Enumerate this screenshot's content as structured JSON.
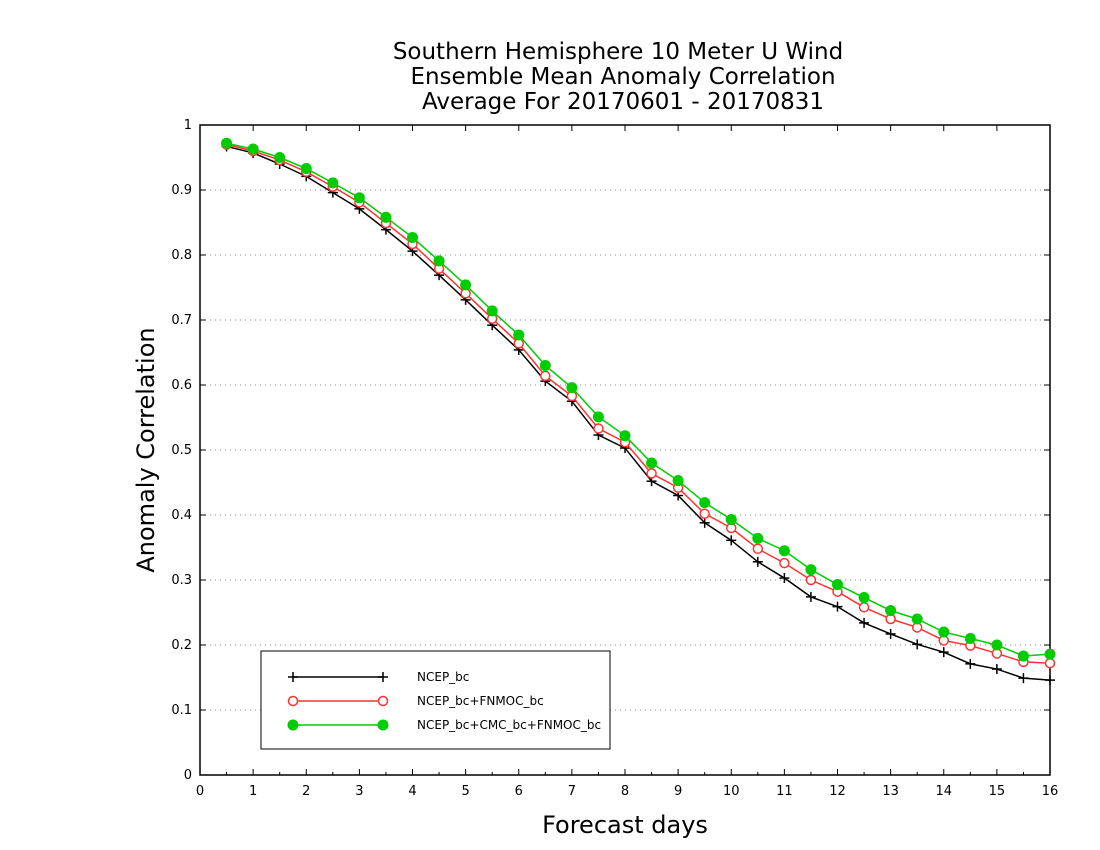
{
  "chart_data": {
    "type": "line",
    "title": [
      "Southern Hemisphere 10 Meter U Wind",
      "Ensemble Mean Anomaly Correlation",
      "Average For 20170601 - 20170831"
    ],
    "xlabel": "Forecast days",
    "ylabel": "Anomaly Correlation",
    "xlim": [
      0,
      16
    ],
    "ylim": [
      0,
      1
    ],
    "x_ticks": [
      "0",
      "1",
      "2",
      "3",
      "4",
      "5",
      "6",
      "7",
      "8",
      "9",
      "10",
      "11",
      "12",
      "13",
      "14",
      "15",
      "16"
    ],
    "y_ticks": [
      "0",
      "0.1",
      "0.2",
      "0.3",
      "0.4",
      "0.5",
      "0.6",
      "0.7",
      "0.8",
      "0.9",
      "1"
    ],
    "grid": true,
    "legend_position": "bottom-left",
    "x": [
      0.5,
      1,
      1.5,
      2,
      2.5,
      3,
      3.5,
      4,
      4.5,
      5,
      5.5,
      6,
      6.5,
      7,
      7.5,
      8,
      8.5,
      9,
      9.5,
      10,
      10.5,
      11,
      11.5,
      12,
      12.5,
      13,
      13.5,
      14,
      14.5,
      15,
      15.5,
      16
    ],
    "series": [
      {
        "name": "NCEP_bc",
        "color": "#000000",
        "marker": "plus",
        "values": [
          0.967,
          0.957,
          0.94,
          0.921,
          0.896,
          0.871,
          0.839,
          0.806,
          0.769,
          0.731,
          0.692,
          0.654,
          0.606,
          0.575,
          0.523,
          0.503,
          0.452,
          0.43,
          0.388,
          0.361,
          0.328,
          0.303,
          0.274,
          0.259,
          0.234,
          0.217,
          0.201,
          0.189,
          0.171,
          0.163,
          0.149,
          0.146
        ]
      },
      {
        "name": "NCEP_bc+FNMOC_bc",
        "color": "#ff3333",
        "marker": "open-circle",
        "values": [
          0.97,
          0.96,
          0.946,
          0.928,
          0.905,
          0.881,
          0.849,
          0.817,
          0.779,
          0.741,
          0.702,
          0.664,
          0.614,
          0.583,
          0.533,
          0.512,
          0.464,
          0.442,
          0.402,
          0.38,
          0.348,
          0.326,
          0.3,
          0.282,
          0.258,
          0.24,
          0.227,
          0.207,
          0.199,
          0.187,
          0.174,
          0.172
        ]
      },
      {
        "name": "NCEP_bc+CMC_bc+FNMOC_bc",
        "color": "#00cc00",
        "marker": "filled-circle",
        "values": [
          0.972,
          0.963,
          0.95,
          0.933,
          0.911,
          0.888,
          0.858,
          0.827,
          0.791,
          0.754,
          0.714,
          0.677,
          0.63,
          0.596,
          0.551,
          0.522,
          0.48,
          0.453,
          0.419,
          0.393,
          0.364,
          0.345,
          0.316,
          0.293,
          0.273,
          0.253,
          0.24,
          0.22,
          0.21,
          0.2,
          0.183,
          0.186
        ]
      }
    ]
  }
}
